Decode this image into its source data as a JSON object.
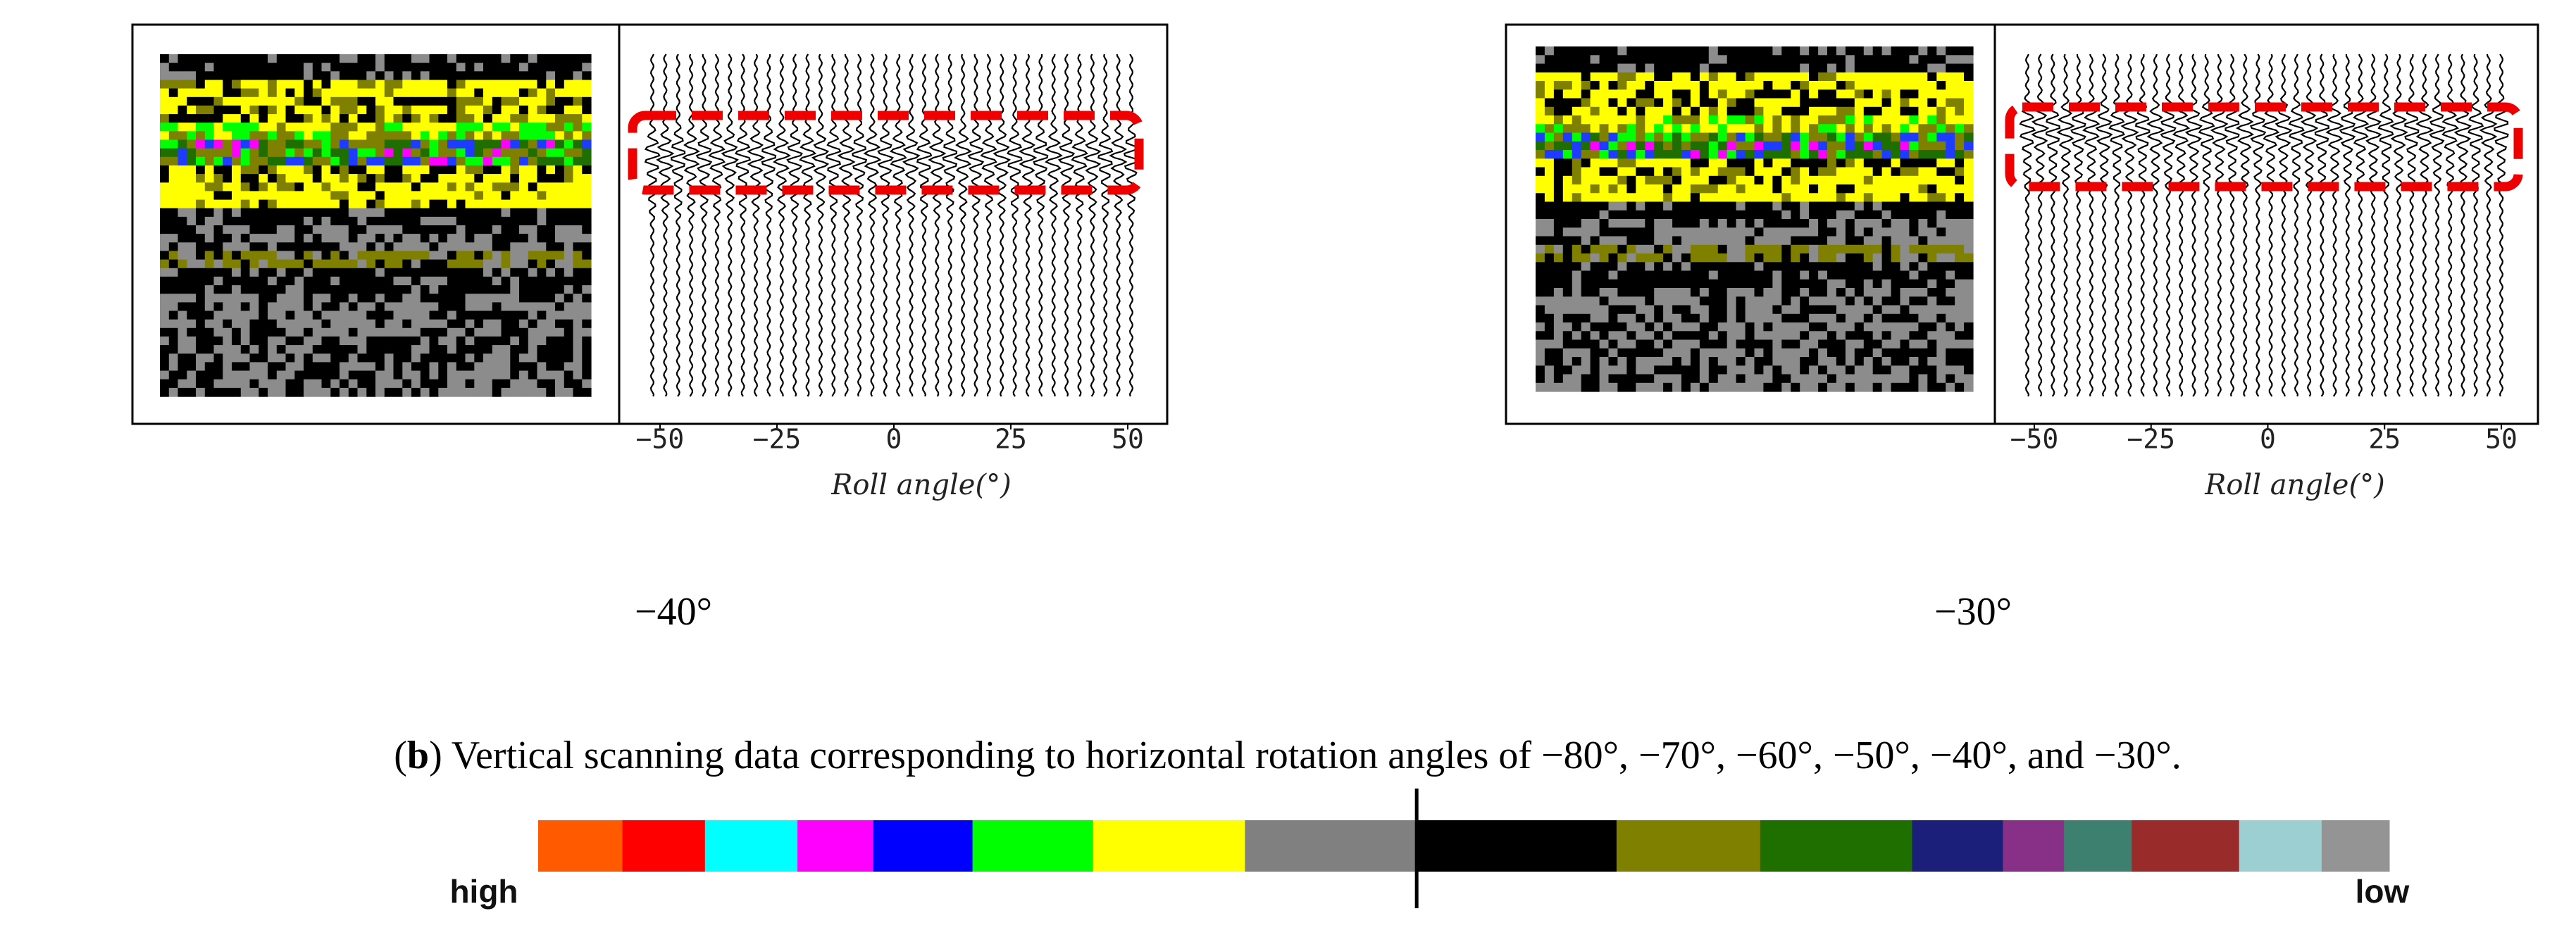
{
  "panels": [
    {
      "xticks": [
        "−50",
        "−25",
        "0",
        "25",
        "50"
      ],
      "xlabel": "Roll angle(°)",
      "caption": "−40°"
    },
    {
      "xticks": [
        "−50",
        "−25",
        "0",
        "25",
        "50"
      ],
      "xlabel": "Roll angle(°)",
      "caption": "−30°"
    }
  ],
  "figure_caption": {
    "open": "(",
    "label": "b",
    "text": ") Vertical scanning data corresponding to horizontal rotation angles of −80°, −70°, −60°, −50°, −40°, and −30°."
  },
  "colorbar": {
    "high": "high",
    "low": "low"
  }
}
